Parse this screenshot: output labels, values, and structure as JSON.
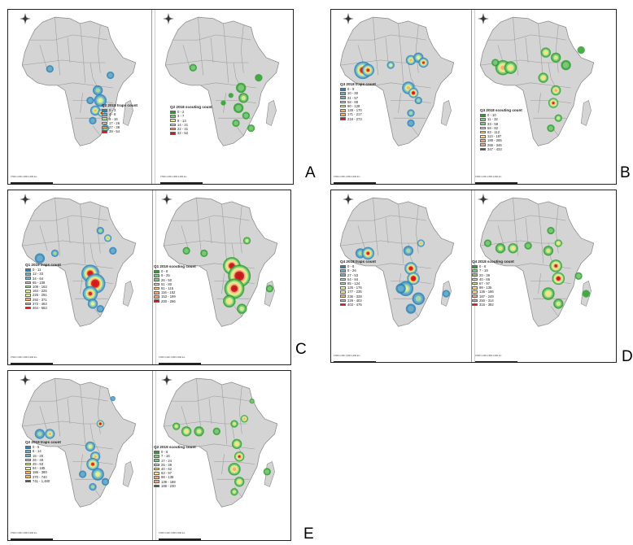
{
  "figure": {
    "panel_letters": [
      "A",
      "B",
      "C",
      "D",
      "E"
    ]
  },
  "colors": {
    "land": "#d4d4d4",
    "border": "#9a9a9a",
    "trap_ramp": [
      "#2b83ba",
      "#6fb0c9",
      "#abdda4",
      "#e6f598",
      "#fdae61",
      "#d7191c"
    ],
    "scout_ramp": [
      "#2ca02c",
      "#7fc97f",
      "#d9ef8b",
      "#fee08b",
      "#f4a582",
      "#c51b1b"
    ]
  },
  "scale_text": "0   500  1,000  1,500  2,000 km",
  "panels": [
    {
      "letter": "A",
      "traps": {
        "title": "Q2 2018 traps count",
        "items": [
          "0 - 3",
          "4 - 8",
          "9 - 16",
          "17 - 26",
          "27 - 38",
          "39 - 54"
        ]
      },
      "scouting": {
        "title": "Q2 2018 scouting count",
        "items": [
          "0 - 2",
          "3 - 7",
          "8 - 13",
          "14 - 21",
          "22 - 31",
          "32 - 52"
        ]
      }
    },
    {
      "letter": "B",
      "traps": {
        "title": "Q3 2018 traps count",
        "items": [
          "0 - 9",
          "10 - 30",
          "31 - 57",
          "58 - 89",
          "90 - 128",
          "129 - 170",
          "171 - 217",
          "218 - 273"
        ]
      },
      "scouting": {
        "title": "Q3 2018 scouting count",
        "items": [
          "0 - 10",
          "11 - 32",
          "33 - 58",
          "59 - 82",
          "83 - 112",
          "113 - 187",
          "188 - 265",
          "266 - 346",
          "347 - 433"
        ]
      }
    },
    {
      "letter": "C",
      "traps": {
        "title": "Q1 2019 traps count",
        "items": [
          "0 - 11",
          "12 - 33",
          "34 - 64",
          "65 - 108",
          "109 - 163",
          "164 - 225",
          "226 - 291",
          "292 - 371",
          "372 - 463",
          "464 - 563"
        ]
      },
      "scouting": {
        "title": "Q1 2019 scouting count",
        "items": [
          "0 - 8",
          "9 - 25",
          "26 - 50",
          "51 - 80",
          "81 - 115",
          "116 - 152",
          "153 - 199",
          "200 - 266"
        ]
      }
    },
    {
      "letter": "D",
      "traps": {
        "title": "Q4 2018 traps count",
        "items": [
          "0 - 8",
          "9 - 26",
          "27 - 53",
          "54 - 84",
          "85 - 124",
          "125 - 176",
          "177 - 235",
          "236 - 328",
          "329 - 402",
          "403 - 475"
        ]
      },
      "scouting": {
        "title": "Q4 2018 scouting count",
        "items": [
          "0 - 6",
          "7 - 19",
          "20 - 39",
          "40 - 66",
          "67 - 97",
          "98 - 135",
          "136 - 186",
          "187 - 249",
          "250 - 314",
          "315 - 392"
        ]
      }
    },
    {
      "letter": "E",
      "traps": {
        "title": "Q2 2019 traps count",
        "items": [
          "0 - 5",
          "6 - 14",
          "15 - 25",
          "26 - 48",
          "49 - 93",
          "94 - 185",
          "186 - 369",
          "370 - 740",
          "741 - 1,480"
        ]
      },
      "scouting": {
        "title": "Q2 2019 scouting count",
        "items": [
          "0 - 6",
          "7 - 16",
          "17 - 24",
          "25 - 39",
          "40 - 62",
          "63 - 97",
          "98 - 138",
          "139 - 188",
          "189 - 230"
        ]
      }
    }
  ]
}
